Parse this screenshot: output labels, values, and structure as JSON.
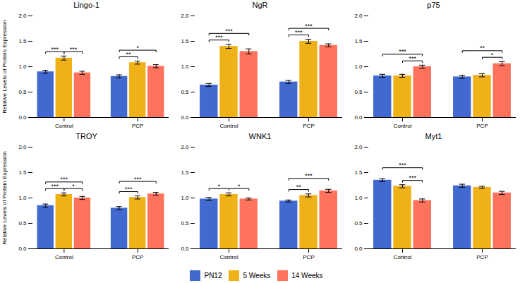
{
  "chart_data": [
    {
      "type": "bar",
      "title": "Lingo-1",
      "ylabel": "Relative Levels of Protein Expression",
      "categories": [
        "Control",
        "PCP"
      ],
      "series": [
        {
          "name": "PN12",
          "values": [
            0.9,
            0.81
          ],
          "errors": [
            0.03,
            0.03
          ]
        },
        {
          "name": "5 Weeks",
          "values": [
            1.17,
            1.08
          ],
          "errors": [
            0.04,
            0.03
          ]
        },
        {
          "name": "14 Weeks",
          "values": [
            0.88,
            1.01
          ],
          "errors": [
            0.03,
            0.03
          ]
        }
      ],
      "brackets": [
        {
          "category": "Control",
          "from": "PN12",
          "to": "5 Weeks",
          "label": "***",
          "level": 0
        },
        {
          "category": "Control",
          "from": "5 Weeks",
          "to": "14 Weeks",
          "label": "***",
          "level": 0
        },
        {
          "category": "PCP",
          "from": "PN12",
          "to": "5 Weeks",
          "label": "**",
          "level": 0
        },
        {
          "category": "PCP",
          "from": "PN12",
          "to": "14 Weeks",
          "label": "*",
          "level": 1
        }
      ],
      "ylim": [
        0.0,
        2.0
      ],
      "yticks": [
        {
          "value": 0,
          "label": "0.0"
        },
        {
          "value": 0.5,
          "label": "0.5"
        },
        {
          "value": 1,
          "label": "1.0"
        },
        {
          "value": 1.5,
          "label": "1.5"
        },
        {
          "value": 2,
          "label": "2.0"
        }
      ],
      "grid": false,
      "legend": "bottom"
    },
    {
      "type": "bar",
      "title": "NgR",
      "categories": [
        "Control",
        "PCP"
      ],
      "series": [
        {
          "name": "PN12",
          "values": [
            0.64,
            0.7
          ],
          "errors": [
            0.03,
            0.03
          ]
        },
        {
          "name": "5 Weeks",
          "values": [
            1.4,
            1.5
          ],
          "errors": [
            0.04,
            0.04
          ]
        },
        {
          "name": "14 Weeks",
          "values": [
            1.3,
            1.42
          ],
          "errors": [
            0.05,
            0.03
          ]
        }
      ],
      "brackets": [
        {
          "category": "Control",
          "from": "PN12",
          "to": "5 Weeks",
          "label": "***",
          "level": 0
        },
        {
          "category": "Control",
          "from": "PN12",
          "to": "14 Weeks",
          "label": "***",
          "level": 1
        },
        {
          "category": "PCP",
          "from": "PN12",
          "to": "5 Weeks",
          "label": "***",
          "level": 0
        },
        {
          "category": "PCP",
          "from": "PN12",
          "to": "14 Weeks",
          "label": "***",
          "level": 1
        }
      ],
      "ylim": [
        0.0,
        2.0
      ],
      "yticks": [
        {
          "value": 0,
          "label": "0.0"
        },
        {
          "value": 0.5,
          "label": "0.5"
        },
        {
          "value": 1,
          "label": "1.0"
        },
        {
          "value": 1.5,
          "label": "1.5"
        },
        {
          "value": 2,
          "label": "2.0"
        }
      ],
      "grid": false,
      "legend": "bottom"
    },
    {
      "type": "bar",
      "title": "p75",
      "categories": [
        "Control",
        "PCP"
      ],
      "series": [
        {
          "name": "PN12",
          "values": [
            0.82,
            0.8
          ],
          "errors": [
            0.03,
            0.03
          ]
        },
        {
          "name": "5 Weeks",
          "values": [
            0.82,
            0.83
          ],
          "errors": [
            0.03,
            0.03
          ]
        },
        {
          "name": "14 Weeks",
          "values": [
            1.0,
            1.06
          ],
          "errors": [
            0.03,
            0.04
          ]
        }
      ],
      "brackets": [
        {
          "category": "Control",
          "from": "5 Weeks",
          "to": "14 Weeks",
          "label": "***",
          "level": 0
        },
        {
          "category": "Control",
          "from": "PN12",
          "to": "14 Weeks",
          "label": "***",
          "level": 1
        },
        {
          "category": "PCP",
          "from": "5 Weeks",
          "to": "14 Weeks",
          "label": "*",
          "level": 0
        },
        {
          "category": "PCP",
          "from": "PN12",
          "to": "14 Weeks",
          "label": "**",
          "level": 1
        }
      ],
      "ylim": [
        0.0,
        2.0
      ],
      "yticks": [
        {
          "value": 0,
          "label": "0.0"
        },
        {
          "value": 0.5,
          "label": "0.5"
        },
        {
          "value": 1,
          "label": "1.0"
        },
        {
          "value": 1.5,
          "label": "1.5"
        },
        {
          "value": 2,
          "label": "2.0"
        }
      ],
      "grid": false,
      "legend": "bottom"
    },
    {
      "type": "bar",
      "title": "TROY",
      "ylabel": "Relative Levels of Protein Expression",
      "categories": [
        "Control",
        "PCP"
      ],
      "series": [
        {
          "name": "PN12",
          "values": [
            0.85,
            0.8
          ],
          "errors": [
            0.03,
            0.03
          ]
        },
        {
          "name": "5 Weeks",
          "values": [
            1.07,
            1.01
          ],
          "errors": [
            0.03,
            0.03
          ]
        },
        {
          "name": "14 Weeks",
          "values": [
            1.0,
            1.08
          ],
          "errors": [
            0.03,
            0.03
          ]
        }
      ],
      "brackets": [
        {
          "category": "Control",
          "from": "PN12",
          "to": "5 Weeks",
          "label": "***",
          "level": 0
        },
        {
          "category": "Control",
          "from": "5 Weeks",
          "to": "14 Weeks",
          "label": "*",
          "level": 0
        },
        {
          "category": "Control",
          "from": "PN12",
          "to": "14 Weeks",
          "label": "***",
          "level": 1
        },
        {
          "category": "PCP",
          "from": "PN12",
          "to": "5 Weeks",
          "label": "***",
          "level": 0
        },
        {
          "category": "PCP",
          "from": "PN12",
          "to": "14 Weeks",
          "label": "***",
          "level": 1
        }
      ],
      "ylim": [
        0.0,
        2.0
      ],
      "yticks": [
        {
          "value": 0,
          "label": "0.0"
        },
        {
          "value": 0.5,
          "label": "0.5"
        },
        {
          "value": 1,
          "label": "1.0"
        },
        {
          "value": 1.5,
          "label": "1.5"
        },
        {
          "value": 2,
          "label": "2.0"
        }
      ],
      "grid": false,
      "legend": "bottom"
    },
    {
      "type": "bar",
      "title": "WNK1",
      "categories": [
        "Control",
        "PCP"
      ],
      "series": [
        {
          "name": "PN12",
          "values": [
            0.98,
            0.94
          ],
          "errors": [
            0.03,
            0.02
          ]
        },
        {
          "name": "5 Weeks",
          "values": [
            1.07,
            1.05
          ],
          "errors": [
            0.03,
            0.03
          ]
        },
        {
          "name": "14 Weeks",
          "values": [
            0.98,
            1.14
          ],
          "errors": [
            0.02,
            0.03
          ]
        }
      ],
      "brackets": [
        {
          "category": "Control",
          "from": "PN12",
          "to": "5 Weeks",
          "label": "*",
          "level": 0
        },
        {
          "category": "Control",
          "from": "5 Weeks",
          "to": "14 Weeks",
          "label": "*",
          "level": 0
        },
        {
          "category": "PCP",
          "from": "PN12",
          "to": "5 Weeks",
          "label": "**",
          "level": 0
        },
        {
          "category": "PCP",
          "from": "PN12",
          "to": "14 Weeks",
          "label": "***",
          "level": 1
        }
      ],
      "ylim": [
        0.0,
        2.0
      ],
      "yticks": [
        {
          "value": 0,
          "label": "0.0"
        },
        {
          "value": 0.5,
          "label": "0.5"
        },
        {
          "value": 1,
          "label": "1.0"
        },
        {
          "value": 1.5,
          "label": "1.5"
        },
        {
          "value": 2,
          "label": "2.0"
        }
      ],
      "grid": false,
      "legend": "bottom"
    },
    {
      "type": "bar",
      "title": "Myt1",
      "categories": [
        "Control",
        "PCP"
      ],
      "series": [
        {
          "name": "PN12",
          "values": [
            1.35,
            1.24
          ],
          "errors": [
            0.03,
            0.03
          ]
        },
        {
          "name": "5 Weeks",
          "values": [
            1.23,
            1.21
          ],
          "errors": [
            0.03,
            0.02
          ]
        },
        {
          "name": "14 Weeks",
          "values": [
            0.95,
            1.1
          ],
          "errors": [
            0.03,
            0.03
          ]
        }
      ],
      "brackets": [
        {
          "category": "Control",
          "from": "5 Weeks",
          "to": "14 Weeks",
          "label": "***",
          "level": 0
        },
        {
          "category": "Control",
          "from": "PN12",
          "to": "14 Weeks",
          "label": "***",
          "level": 1
        }
      ],
      "ylim": [
        0.0,
        2.0
      ],
      "yticks": [
        {
          "value": 0,
          "label": "0.0"
        },
        {
          "value": 0.5,
          "label": "0.5"
        },
        {
          "value": 1,
          "label": "1.0"
        },
        {
          "value": 1.5,
          "label": "1.5"
        },
        {
          "value": 2,
          "label": "2.0"
        }
      ],
      "grid": false,
      "legend": "bottom"
    }
  ]
}
